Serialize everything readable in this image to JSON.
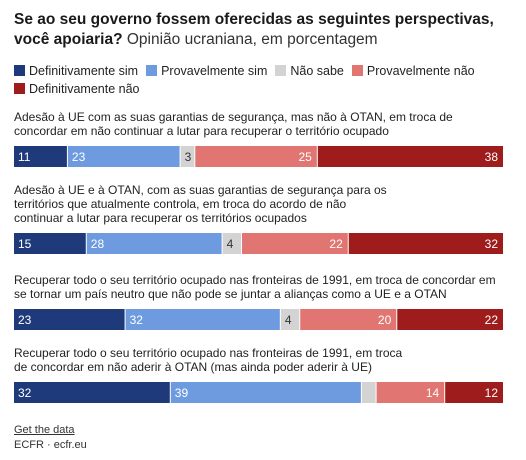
{
  "title": {
    "question": "Se ao seu governo fossem oferecidas as seguintes perspectivas, você apoiaria?",
    "subtitle": "Opinião ucraniana, em porcentagem"
  },
  "colors": {
    "definitivamente_sim": "#1f3a7a",
    "provavelmente_sim": "#6e9be0",
    "nao_sabe": "#d3d3d3",
    "provavelmente_nao": "#e07571",
    "definitivamente_nao": "#9e1c1c"
  },
  "footer": {
    "get_data": "Get the data",
    "source": "ECFR · ecfr.eu"
  },
  "chart_data": {
    "type": "bar",
    "orientation": "horizontal",
    "stacked": true,
    "legend_position": "top",
    "categories": [
      "Adesão à UE com as suas garantias de segurança, mas não à OTAN, em troca de concordar em não continuar a lutar para recuperar o território ocupado",
      "Adesão à UE e à OTAN, com as suas garantias de segurança para os territórios que atualmente controla, em troca do acordo de não continuar a lutar para recuperar os territórios ocupados",
      "Recuperar todo o seu território ocupado nas fronteiras de 1991, em troca de concordar em se tornar um país neutro que não pode se juntar a alianças como a UE e a OTAN",
      "Recuperar todo o seu território ocupado nas fronteiras de 1991, em troca de concordar em não aderir à OTAN (mas ainda poder aderir à UE)"
    ],
    "series": [
      {
        "name": "Definitivamente sim",
        "color": "#1f3a7a",
        "values": [
          11,
          15,
          23,
          32
        ]
      },
      {
        "name": "Provavelmente sim",
        "color": "#6e9be0",
        "values": [
          23,
          28,
          32,
          39
        ]
      },
      {
        "name": "Não sabe",
        "color": "#d3d3d3",
        "values": [
          3,
          4,
          4,
          3
        ]
      },
      {
        "name": "Provavelmente não",
        "color": "#e07571",
        "values": [
          25,
          22,
          20,
          14
        ]
      },
      {
        "name": "Definitivamente não",
        "color": "#9e1c1c",
        "values": [
          38,
          32,
          22,
          12
        ]
      }
    ],
    "data_labels": [
      [
        "11",
        "23",
        "3",
        "25",
        "38"
      ],
      [
        "15",
        "28",
        "4",
        "22",
        "32"
      ],
      [
        "23",
        "32",
        "4",
        "20",
        "22"
      ],
      [
        "32",
        "39",
        "",
        "14",
        "12"
      ]
    ]
  }
}
